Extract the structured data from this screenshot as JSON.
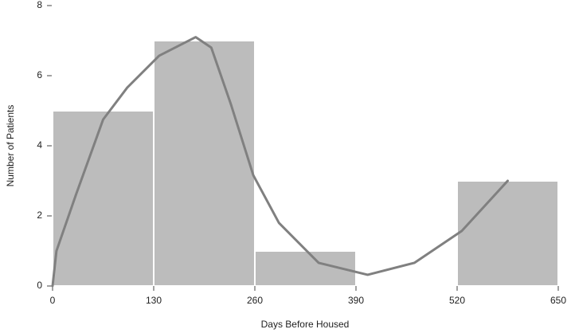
{
  "chart_data": {
    "type": "histogram",
    "xlabel": "Days Before Housed",
    "ylabel": "Number of Patients",
    "bins": [
      0,
      130,
      260,
      390,
      520,
      650
    ],
    "values": [
      5,
      7,
      1,
      0,
      3
    ],
    "color": "#bcbcbc",
    "curve": {
      "color": "#808080",
      "x": [
        0,
        5,
        30,
        65,
        96,
        137,
        184,
        204,
        229,
        258,
        291,
        342,
        405,
        465,
        526,
        585
      ],
      "values": [
        0,
        1.0,
        2.6,
        4.75,
        5.66,
        6.57,
        7.1,
        6.8,
        5.2,
        3.16,
        1.8,
        0.66,
        0.32,
        0.66,
        1.57,
        3.0
      ]
    },
    "xlim": [
      0,
      650
    ],
    "xticks": [
      0,
      130,
      260,
      390,
      520,
      650
    ],
    "ylim": [
      0,
      8
    ],
    "yticks": [
      0,
      2,
      4,
      6,
      8
    ]
  }
}
